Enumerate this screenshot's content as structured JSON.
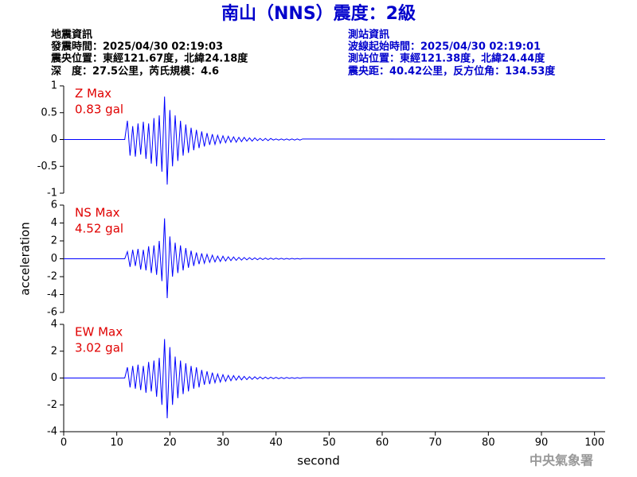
{
  "header": {
    "title": "南山（NNS）震度：2級",
    "left": [
      "地震資訊",
      "發震時間：2025/04/30 02:19:03",
      "震央位置：東經121.67度，北緯24.18度",
      "深　度：27.5公里，芮氏規模：4.6"
    ],
    "right": [
      "測站資訊",
      "波線起始時間：2025/04/30 02:19:01",
      "測站位置：東經121.38度，北緯24.44度",
      "震央距：40.42公里，反方位角：134.53度"
    ]
  },
  "footer": "中央氣象署",
  "chart_data": [
    {
      "type": "line",
      "color": "#0000ff",
      "annotations": [
        "Z Max",
        "0.83 gal"
      ],
      "xlim": [
        0,
        102
      ],
      "ylim": [
        -1,
        1
      ],
      "yticks": [
        1,
        0.5,
        0,
        -0.5,
        -1
      ],
      "x": [
        0,
        11.5,
        12,
        12.5,
        13,
        13.5,
        14,
        14.5,
        15,
        15.5,
        16,
        16.5,
        17,
        17.5,
        18,
        18.5,
        19,
        19.5,
        20,
        20.5,
        21,
        21.5,
        22,
        22.5,
        23,
        23.5,
        24,
        24.5,
        25,
        25.5,
        26,
        26.5,
        27,
        27.5,
        28,
        28.5,
        29,
        29.5,
        30,
        30.5,
        31,
        31.5,
        32,
        32.5,
        33,
        33.5,
        34,
        34.5,
        35,
        35.5,
        36,
        36.5,
        37,
        37.5,
        38,
        38.5,
        39,
        39.5,
        40,
        40.5,
        41,
        41.5,
        42,
        42.5,
        43,
        43.5,
        44,
        44.5,
        45,
        102
      ],
      "values": [
        0,
        0,
        0.35,
        -0.3,
        0.25,
        -0.32,
        0.3,
        -0.28,
        0.33,
        -0.36,
        0.3,
        -0.45,
        0.4,
        -0.5,
        0.45,
        -0.6,
        0.8,
        -0.84,
        0.55,
        -0.5,
        0.45,
        -0.4,
        0.35,
        -0.3,
        0.28,
        -0.25,
        0.22,
        -0.2,
        0.18,
        -0.16,
        0.15,
        -0.13,
        0.12,
        -0.1,
        0.1,
        -0.09,
        0.08,
        -0.07,
        0.07,
        -0.06,
        0.06,
        -0.05,
        0.05,
        -0.05,
        0.04,
        -0.04,
        0.04,
        -0.03,
        0.03,
        -0.03,
        0.03,
        -0.02,
        0.02,
        -0.02,
        0.02,
        -0.02,
        0.02,
        -0.01,
        0.01,
        -0.01,
        0.01,
        -0.01,
        0.01,
        -0.01,
        0.01,
        -0.01,
        0.01,
        -0.01,
        0.01,
        0
      ]
    },
    {
      "type": "line",
      "color": "#0000ff",
      "annotations": [
        "NS Max",
        "4.52 gal"
      ],
      "ylabel": "acceleration",
      "xlim": [
        0,
        102
      ],
      "ylim": [
        -6,
        6
      ],
      "yticks": [
        6,
        4,
        2,
        0,
        -2,
        -4,
        -6
      ],
      "x": [
        0,
        11.5,
        12,
        12.5,
        13,
        13.5,
        14,
        14.5,
        15,
        15.5,
        16,
        16.5,
        17,
        17.5,
        18,
        18.5,
        19,
        19.5,
        20,
        20.5,
        21,
        21.5,
        22,
        22.5,
        23,
        23.5,
        24,
        24.5,
        25,
        25.5,
        26,
        26.5,
        27,
        27.5,
        28,
        28.5,
        29,
        29.5,
        30,
        30.5,
        31,
        31.5,
        32,
        32.5,
        33,
        33.5,
        34,
        34.5,
        35,
        35.5,
        36,
        36.5,
        37,
        37.5,
        38,
        38.5,
        39,
        39.5,
        40,
        40.5,
        41,
        41.5,
        42,
        42.5,
        43,
        43.5,
        44,
        44.5,
        45,
        102
      ],
      "values": [
        0,
        0,
        0.8,
        -0.9,
        1.0,
        -0.8,
        1.1,
        -1.2,
        1.0,
        -1.3,
        1.4,
        -1.6,
        1.5,
        -1.8,
        2.0,
        -2.5,
        4.52,
        -4.4,
        2.5,
        -2.0,
        1.8,
        -1.6,
        1.5,
        -1.3,
        1.2,
        -1.0,
        0.9,
        -0.8,
        0.7,
        -0.6,
        0.6,
        -0.5,
        0.5,
        -0.4,
        0.4,
        -0.35,
        0.3,
        -0.3,
        0.28,
        -0.25,
        0.22,
        -0.2,
        0.2,
        -0.18,
        0.16,
        -0.15,
        0.14,
        -0.12,
        0.12,
        -0.1,
        0.1,
        -0.1,
        0.09,
        -0.08,
        0.08,
        -0.07,
        0.07,
        -0.06,
        0.06,
        -0.05,
        0.05,
        -0.05,
        0.04,
        -0.04,
        0.04,
        -0.03,
        0.03,
        -0.03,
        0.02,
        0
      ]
    },
    {
      "type": "line",
      "color": "#0000ff",
      "annotations": [
        "EW Max",
        "3.02 gal"
      ],
      "xlabel": "second",
      "xlim": [
        0,
        102
      ],
      "ylim": [
        -4,
        4
      ],
      "yticks": [
        4,
        2,
        0,
        -2,
        -4
      ],
      "xticks": [
        0,
        10,
        20,
        30,
        40,
        50,
        60,
        70,
        80,
        90,
        100
      ],
      "x": [
        0,
        11.5,
        12,
        12.5,
        13,
        13.5,
        14,
        14.5,
        15,
        15.5,
        16,
        16.5,
        17,
        17.5,
        18,
        18.5,
        19,
        19.5,
        20,
        20.5,
        21,
        21.5,
        22,
        22.5,
        23,
        23.5,
        24,
        24.5,
        25,
        25.5,
        26,
        26.5,
        27,
        27.5,
        28,
        28.5,
        29,
        29.5,
        30,
        30.5,
        31,
        31.5,
        32,
        32.5,
        33,
        33.5,
        34,
        34.5,
        35,
        35.5,
        36,
        36.5,
        37,
        37.5,
        38,
        38.5,
        39,
        39.5,
        40,
        40.5,
        41,
        41.5,
        42,
        42.5,
        43,
        43.5,
        44,
        44.5,
        45,
        102
      ],
      "values": [
        0,
        0,
        0.8,
        -0.7,
        0.9,
        -0.8,
        1.0,
        -0.9,
        0.9,
        -1.1,
        1.2,
        -1.0,
        1.3,
        -1.4,
        1.5,
        -2.0,
        2.9,
        -3.0,
        2.3,
        -2.0,
        1.6,
        -1.5,
        1.3,
        -1.2,
        1.1,
        -1.0,
        0.9,
        -0.8,
        0.8,
        -0.7,
        0.6,
        -0.5,
        0.5,
        -0.45,
        0.4,
        -0.35,
        0.3,
        -0.3,
        0.25,
        -0.25,
        0.2,
        -0.2,
        0.18,
        -0.16,
        0.15,
        -0.14,
        0.12,
        -0.12,
        0.1,
        -0.1,
        0.09,
        -0.08,
        0.08,
        -0.07,
        0.07,
        -0.06,
        0.06,
        -0.05,
        0.05,
        -0.05,
        0.04,
        -0.04,
        0.04,
        -0.03,
        0.03,
        -0.03,
        0.03,
        -0.02,
        0.02,
        0
      ]
    }
  ]
}
